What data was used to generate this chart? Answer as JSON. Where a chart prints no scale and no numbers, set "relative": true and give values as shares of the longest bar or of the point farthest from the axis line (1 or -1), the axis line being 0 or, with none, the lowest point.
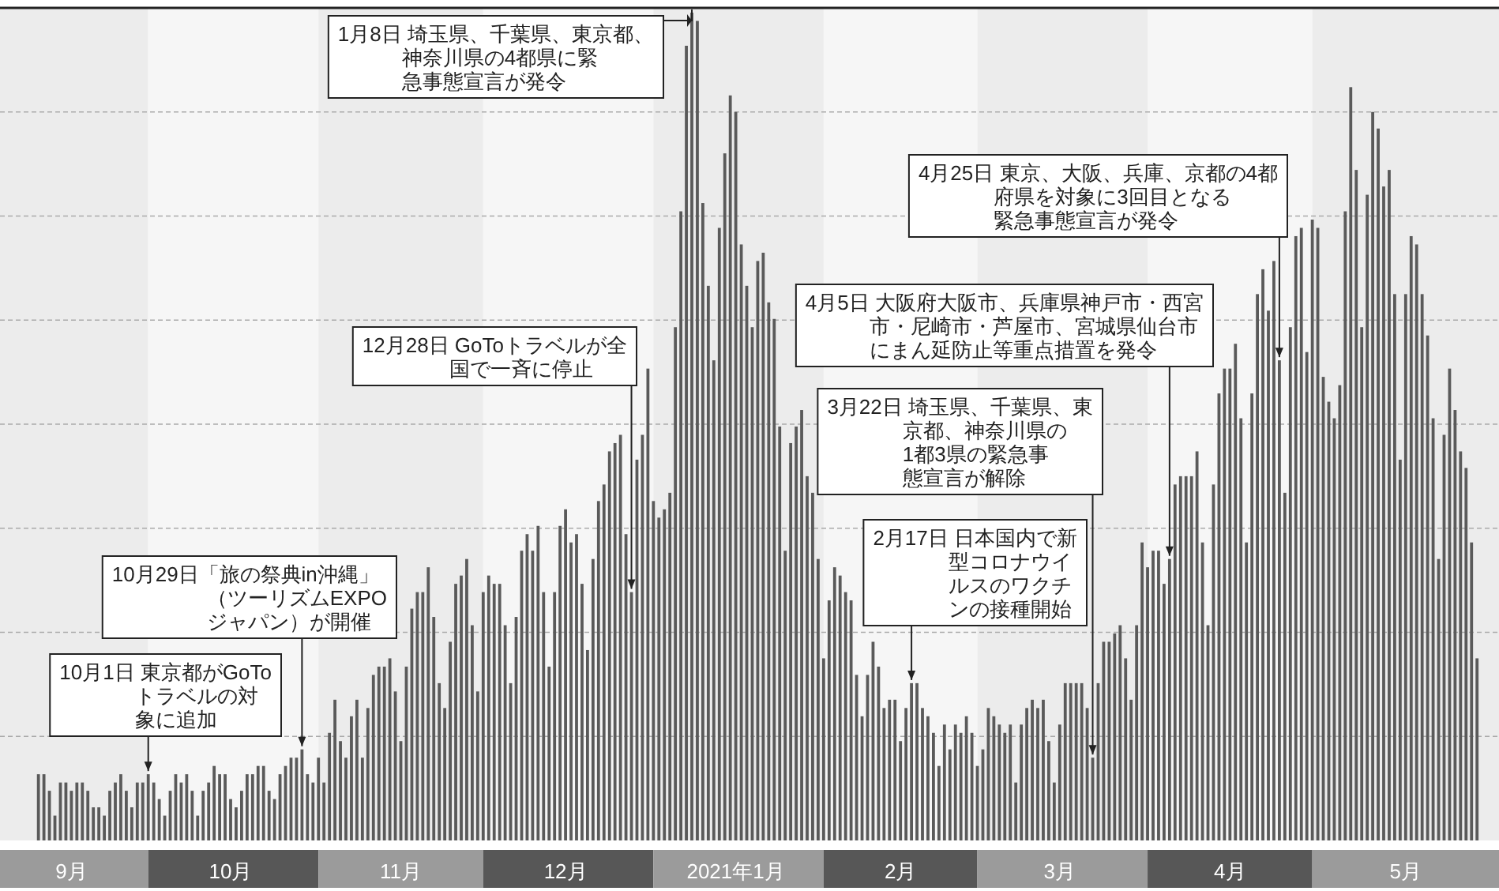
{
  "chart_data": {
    "type": "bar",
    "relative": true,
    "grid": true,
    "xlim": [
      "2020-09-04",
      "2021-06-04"
    ],
    "xticks": [
      {
        "value": "2020-09-17",
        "label": "9月"
      },
      {
        "value": "2020-10-16",
        "label": "10月"
      },
      {
        "value": "2020-11-16",
        "label": "11月"
      },
      {
        "value": "2020-12-16",
        "label": "12月"
      },
      {
        "value": "2021-01-16",
        "label": "2021年1月"
      },
      {
        "value": "2021-02-15",
        "label": "2月"
      },
      {
        "value": "2021-03-16",
        "label": "3月"
      },
      {
        "value": "2021-04-16",
        "label": "4月"
      },
      {
        "value": "2021-05-18",
        "label": "5月"
      }
    ],
    "bands": [
      {
        "axis": "x",
        "from": "2020-09-04",
        "to": "2020-10-01",
        "color": "#ececec"
      },
      {
        "axis": "x",
        "from": "2020-10-01",
        "to": "2020-11-01",
        "color": "#f6f6f6"
      },
      {
        "axis": "x",
        "from": "2020-11-01",
        "to": "2020-12-01",
        "color": "#ececec"
      },
      {
        "axis": "x",
        "from": "2020-12-01",
        "to": "2021-01-01",
        "color": "#f6f6f6"
      },
      {
        "axis": "x",
        "from": "2021-01-01",
        "to": "2021-02-01",
        "color": "#ececec"
      },
      {
        "axis": "x",
        "from": "2021-02-01",
        "to": "2021-03-01",
        "color": "#f6f6f6"
      },
      {
        "axis": "x",
        "from": "2021-03-01",
        "to": "2021-04-01",
        "color": "#ececec"
      },
      {
        "axis": "x",
        "from": "2021-04-01",
        "to": "2021-05-01",
        "color": "#f6f6f6"
      },
      {
        "axis": "x",
        "from": "2021-05-01",
        "to": "2021-06-04",
        "color": "#ececec"
      }
    ],
    "x": [
      "2020-09-11",
      "2020-09-12",
      "2020-09-13",
      "2020-09-14",
      "2020-09-15",
      "2020-09-16",
      "2020-09-17",
      "2020-09-18",
      "2020-09-19",
      "2020-09-20",
      "2020-09-21",
      "2020-09-22",
      "2020-09-23",
      "2020-09-24",
      "2020-09-25",
      "2020-09-26",
      "2020-09-27",
      "2020-09-28",
      "2020-09-29",
      "2020-09-30",
      "2020-10-01",
      "2020-10-02",
      "2020-10-03",
      "2020-10-04",
      "2020-10-05",
      "2020-10-06",
      "2020-10-07",
      "2020-10-08",
      "2020-10-09",
      "2020-10-10",
      "2020-10-11",
      "2020-10-12",
      "2020-10-13",
      "2020-10-14",
      "2020-10-15",
      "2020-10-16",
      "2020-10-17",
      "2020-10-18",
      "2020-10-19",
      "2020-10-20",
      "2020-10-21",
      "2020-10-22",
      "2020-10-23",
      "2020-10-24",
      "2020-10-25",
      "2020-10-26",
      "2020-10-27",
      "2020-10-28",
      "2020-10-29",
      "2020-10-30",
      "2020-10-31",
      "2020-11-01",
      "2020-11-02",
      "2020-11-03",
      "2020-11-04",
      "2020-11-05",
      "2020-11-06",
      "2020-11-07",
      "2020-11-08",
      "2020-11-09",
      "2020-11-10",
      "2020-11-11",
      "2020-11-12",
      "2020-11-13",
      "2020-11-14",
      "2020-11-15",
      "2020-11-16",
      "2020-11-17",
      "2020-11-18",
      "2020-11-19",
      "2020-11-20",
      "2020-11-21",
      "2020-11-22",
      "2020-11-23",
      "2020-11-24",
      "2020-11-25",
      "2020-11-26",
      "2020-11-27",
      "2020-11-28",
      "2020-11-29",
      "2020-11-30",
      "2020-12-01",
      "2020-12-02",
      "2020-12-03",
      "2020-12-04",
      "2020-12-05",
      "2020-12-06",
      "2020-12-07",
      "2020-12-08",
      "2020-12-09",
      "2020-12-10",
      "2020-12-11",
      "2020-12-12",
      "2020-12-13",
      "2020-12-14",
      "2020-12-15",
      "2020-12-16",
      "2020-12-17",
      "2020-12-18",
      "2020-12-19",
      "2020-12-20",
      "2020-12-21",
      "2020-12-22",
      "2020-12-23",
      "2020-12-24",
      "2020-12-25",
      "2020-12-26",
      "2020-12-27",
      "2020-12-28",
      "2020-12-29",
      "2020-12-30",
      "2020-12-31",
      "2021-01-01",
      "2021-01-02",
      "2021-01-03",
      "2021-01-04",
      "2021-01-05",
      "2021-01-06",
      "2021-01-07",
      "2021-01-08",
      "2021-01-09",
      "2021-01-10",
      "2021-01-11",
      "2021-01-12",
      "2021-01-13",
      "2021-01-14",
      "2021-01-15",
      "2021-01-16",
      "2021-01-17",
      "2021-01-18",
      "2021-01-19",
      "2021-01-20",
      "2021-01-21",
      "2021-01-22",
      "2021-01-23",
      "2021-01-24",
      "2021-01-25",
      "2021-01-26",
      "2021-01-27",
      "2021-01-28",
      "2021-01-29",
      "2021-01-30",
      "2021-01-31",
      "2021-02-01",
      "2021-02-02",
      "2021-02-03",
      "2021-02-04",
      "2021-02-05",
      "2021-02-06",
      "2021-02-07",
      "2021-02-08",
      "2021-02-09",
      "2021-02-10",
      "2021-02-11",
      "2021-02-12",
      "2021-02-13",
      "2021-02-14",
      "2021-02-15",
      "2021-02-16",
      "2021-02-17",
      "2021-02-18",
      "2021-02-19",
      "2021-02-20",
      "2021-02-21",
      "2021-02-22",
      "2021-02-23",
      "2021-02-24",
      "2021-02-25",
      "2021-02-26",
      "2021-02-27",
      "2021-02-28",
      "2021-03-01",
      "2021-03-02",
      "2021-03-03",
      "2021-03-04",
      "2021-03-05",
      "2021-03-06",
      "2021-03-07",
      "2021-03-08",
      "2021-03-09",
      "2021-03-10",
      "2021-03-11",
      "2021-03-12",
      "2021-03-13",
      "2021-03-14",
      "2021-03-15",
      "2021-03-16",
      "2021-03-17",
      "2021-03-18",
      "2021-03-19",
      "2021-03-20",
      "2021-03-21",
      "2021-03-22",
      "2021-03-23",
      "2021-03-24",
      "2021-03-25",
      "2021-03-26",
      "2021-03-27",
      "2021-03-28",
      "2021-03-29",
      "2021-03-30",
      "2021-03-31",
      "2021-04-01",
      "2021-04-02",
      "2021-04-03",
      "2021-04-04",
      "2021-04-05",
      "2021-04-06",
      "2021-04-07",
      "2021-04-08",
      "2021-04-09",
      "2021-04-10",
      "2021-04-11",
      "2021-04-12",
      "2021-04-13",
      "2021-04-14",
      "2021-04-15",
      "2021-04-16",
      "2021-04-17",
      "2021-04-18",
      "2021-04-19",
      "2021-04-20",
      "2021-04-21",
      "2021-04-22",
      "2021-04-23",
      "2021-04-24",
      "2021-04-25",
      "2021-04-26",
      "2021-04-27",
      "2021-04-28",
      "2021-04-29",
      "2021-04-30",
      "2021-05-01",
      "2021-05-02",
      "2021-05-03",
      "2021-05-04",
      "2021-05-05",
      "2021-05-06",
      "2021-05-07",
      "2021-05-08",
      "2021-05-09",
      "2021-05-10",
      "2021-05-11",
      "2021-05-12",
      "2021-05-13",
      "2021-05-14",
      "2021-05-15",
      "2021-05-16",
      "2021-05-17",
      "2021-05-18",
      "2021-05-19",
      "2021-05-20",
      "2021-05-21",
      "2021-05-22",
      "2021-05-23",
      "2021-05-24",
      "2021-05-25",
      "2021-05-26",
      "2021-05-27",
      "2021-05-28",
      "2021-05-29",
      "2021-05-30",
      "2021-05-31"
    ],
    "series": [
      {
        "color": "#5a5a5a",
        "values": [
          0.08,
          0.08,
          0.06,
          0.03,
          0.07,
          0.07,
          0.06,
          0.07,
          0.07,
          0.06,
          0.04,
          0.04,
          0.03,
          0.06,
          0.07,
          0.08,
          0.06,
          0.04,
          0.07,
          0.07,
          0.08,
          0.07,
          0.05,
          0.03,
          0.06,
          0.08,
          0.07,
          0.08,
          0.06,
          0.03,
          0.06,
          0.07,
          0.09,
          0.08,
          0.08,
          0.05,
          0.04,
          0.06,
          0.08,
          0.08,
          0.09,
          0.09,
          0.06,
          0.05,
          0.08,
          0.09,
          0.1,
          0.1,
          0.11,
          0.08,
          0.07,
          0.1,
          0.07,
          0.13,
          0.17,
          0.12,
          0.1,
          0.15,
          0.17,
          0.1,
          0.16,
          0.2,
          0.21,
          0.21,
          0.22,
          0.18,
          0.12,
          0.21,
          0.28,
          0.3,
          0.3,
          0.33,
          0.27,
          0.19,
          0.16,
          0.24,
          0.31,
          0.32,
          0.34,
          0.26,
          0.18,
          0.3,
          0.32,
          0.31,
          0.31,
          0.26,
          0.19,
          0.27,
          0.35,
          0.37,
          0.35,
          0.38,
          0.3,
          0.21,
          0.3,
          0.38,
          0.4,
          0.36,
          0.37,
          0.31,
          0.23,
          0.34,
          0.41,
          0.43,
          0.47,
          0.48,
          0.49,
          0.37,
          0.3,
          0.46,
          0.49,
          0.57,
          0.41,
          0.39,
          0.4,
          0.42,
          0.62,
          0.76,
          0.96,
          1,
          0.99,
          0.77,
          0.67,
          0.58,
          0.74,
          0.83,
          0.9,
          0.88,
          0.72,
          0.67,
          0.62,
          0.7,
          0.71,
          0.65,
          0.63,
          0.5,
          0.35,
          0.48,
          0.5,
          0.52,
          0.44,
          0.42,
          0.34,
          0.22,
          0.29,
          0.33,
          0.32,
          0.3,
          0.29,
          0.2,
          0.15,
          0.2,
          0.24,
          0.21,
          0.16,
          0.17,
          0.17,
          0.12,
          0.16,
          0.19,
          0.19,
          0.16,
          0.15,
          0.13,
          0.09,
          0.14,
          0.11,
          0.14,
          0.13,
          0.15,
          0.13,
          0.09,
          0.11,
          0.16,
          0.15,
          0.14,
          0.13,
          0.14,
          0.07,
          0.14,
          0.16,
          0.17,
          0.16,
          0.17,
          0.12,
          0.07,
          0.14,
          0.19,
          0.19,
          0.19,
          0.19,
          0.16,
          0.1,
          0.19,
          0.24,
          0.24,
          0.25,
          0.26,
          0.22,
          0.17,
          0.26,
          0.36,
          0.33,
          0.35,
          0.35,
          0.31,
          0.34,
          0.43,
          0.44,
          0.44,
          0.44,
          0.47,
          0.36,
          0.26,
          0.43,
          0.54,
          0.57,
          0.57,
          0.6,
          0.51,
          0.36,
          0.54,
          0.66,
          0.69,
          0.64,
          0.7,
          0.58,
          0.42,
          0.62,
          0.73,
          0.74,
          0.59,
          0.75,
          0.74,
          0.56,
          0.53,
          0.51,
          0.55,
          0.76,
          0.91,
          0.81,
          0.62,
          0.78,
          0.88,
          0.86,
          0.79,
          0.81,
          0.66,
          0.46,
          0.66,
          0.73,
          0.72,
          0.66,
          0.61,
          0.51,
          0.34,
          0.49,
          0.57,
          0.52,
          0.47,
          0.45,
          0.36,
          0.22
        ]
      }
    ],
    "annotations": [
      {
        "text": "10月1日 東京都がGoToトラベルの対象に追加",
        "x": "2020-10-01",
        "y": 0.08
      },
      {
        "text": "10月29日「旅の祭典in沖縄」（ツーリズムEXPOジャパン）が開催",
        "x": "2020-10-29",
        "y": 0.11
      },
      {
        "text": "12月28日 GoToトラベルが全国で一斉に停止",
        "x": "2020-12-28",
        "y": 0.3
      },
      {
        "text": "1月8日 埼玉県、千葉県、東京都、神奈川県の4都県に緊急事態宣言が発令",
        "x": "2021-01-08",
        "y": 1
      },
      {
        "text": "2月17日 日本国内で新型コロナウイルスのワクチンの接種開始",
        "x": "2021-02-17",
        "y": 0.19
      },
      {
        "text": "3月22日 埼玉県、千葉県、東京都、神奈川県の1都3県の緊急事態宣言が解除",
        "x": "2021-03-22",
        "y": 0.1
      },
      {
        "text": "4月5日 大阪府大阪市、兵庫県神戸市・西宮市・尼崎市・芦屋市、宮城県仙台市にまん延防止等重点措置を発令",
        "x": "2021-04-05",
        "y": 0.34
      },
      {
        "text": "4月25日 東京、大阪、兵庫、京都の4都府県を対象に3回目となる緊急事態宣言が発令",
        "x": "2021-04-25",
        "y": 0.58
      }
    ]
  }
}
